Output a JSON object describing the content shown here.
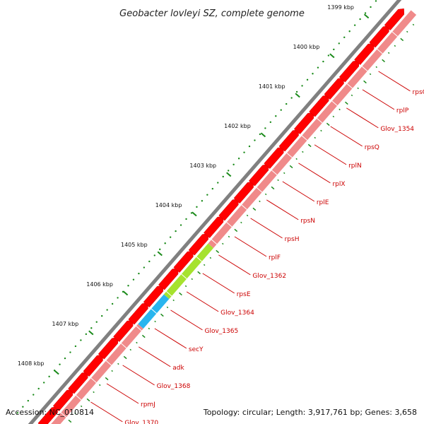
{
  "title": "Geobacter lovleyi SZ, complete genome",
  "accession": "Accession: NC_010814",
  "summary": "Topology: circular; Length: 3,917,761 bp; Genes: 3,658",
  "colors": {
    "backbone": "#808080",
    "cds": "#ff0000",
    "cds_light": "#f08a8a",
    "secY": "#a6e22e",
    "adk": "#29b5ee",
    "tick_minor": "#1a8a1a",
    "label": "#cc0000"
  },
  "kbp_labels": [
    "1399 kbp",
    "1400 kbp",
    "1401 kbp",
    "1402 kbp",
    "1403 kbp",
    "1404 kbp",
    "1405 kbp",
    "1406 kbp",
    "1407 kbp",
    "1408 kbp"
  ],
  "genes": [
    "rpsC",
    "rplP",
    "Glov_1354",
    "rpsQ",
    "rplN",
    "rplX",
    "rplE",
    "rpsN",
    "rpsH",
    "rplF",
    "Glov_1362",
    "rpsE",
    "Glov_1364",
    "Glov_1365",
    "secY",
    "adk",
    "Glov_1368",
    "rpmJ",
    "Glov_1370"
  ]
}
